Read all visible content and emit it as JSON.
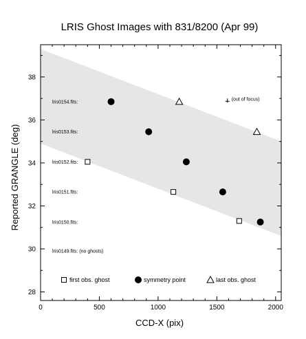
{
  "chart_data": {
    "type": "scatter",
    "title": "LRIS Ghost Images with 831/8200 (Apr 99)",
    "xlabel": "CCD-X (pix)",
    "ylabel": "Reported GRANGLE (deg)",
    "xlim": [
      0,
      2048
    ],
    "ylim": [
      27.6,
      39.5
    ],
    "xticks": [
      0,
      500,
      1000,
      1500,
      2000
    ],
    "yticks": [
      28,
      30,
      32,
      34,
      36,
      38
    ],
    "series": [
      {
        "name": "first obs. ghost",
        "marker": "square",
        "points": [
          {
            "x": 400,
            "y": 34.05
          },
          {
            "x": 1130,
            "y": 32.65
          },
          {
            "x": 1690,
            "y": 31.3
          }
        ]
      },
      {
        "name": "symmetry point",
        "marker": "circle",
        "points": [
          {
            "x": 600,
            "y": 36.85
          },
          {
            "x": 920,
            "y": 35.45
          },
          {
            "x": 1240,
            "y": 34.05
          },
          {
            "x": 1550,
            "y": 32.65
          },
          {
            "x": 1870,
            "y": 31.25
          }
        ]
      },
      {
        "name": "last obs. ghost",
        "marker": "triangle",
        "points": [
          {
            "x": 1180,
            "y": 36.85
          },
          {
            "x": 1840,
            "y": 35.45
          }
        ]
      }
    ],
    "out_of_focus_marker": {
      "x": 1590,
      "y": 36.9,
      "label": "(out of focus)"
    },
    "band": {
      "upper": [
        [
          0,
          39.3
        ],
        [
          2048,
          35.0
        ]
      ],
      "lower": [
        [
          0,
          34.9
        ],
        [
          2048,
          30.6
        ]
      ],
      "color": "#e6e6e6"
    },
    "row_labels": [
      {
        "text": "lris0154.fits:",
        "y": 36.85
      },
      {
        "text": "lris0153.fits:",
        "y": 35.45
      },
      {
        "text": "lris0152.fits:",
        "y": 34.05
      },
      {
        "text": "lris0151.fits:",
        "y": 32.65
      },
      {
        "text": "lris0150.fits:",
        "y": 31.25
      },
      {
        "text": "lris0149.fits:  (no ghosts)",
        "y": 29.9
      }
    ],
    "legend_placement": "bottom inside"
  }
}
